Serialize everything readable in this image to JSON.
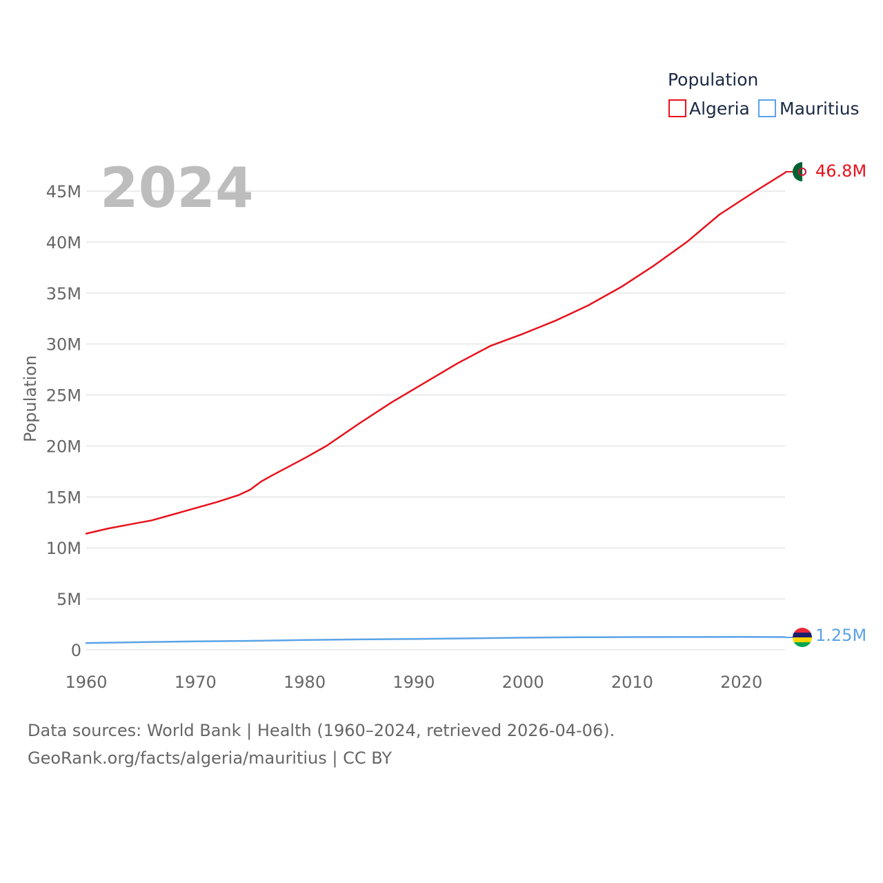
{
  "chart_data": {
    "type": "line",
    "year_label": "2024",
    "legend_title": "Population",
    "ylabel": "Population",
    "xlim": [
      1960,
      2024
    ],
    "ylim": [
      0,
      47000000
    ],
    "x_ticks": [
      1960,
      1970,
      1980,
      1990,
      2000,
      2010,
      2020
    ],
    "x_tick_labels": [
      "1960",
      "1970",
      "1980",
      "1990",
      "2000",
      "2010",
      "2020"
    ],
    "y_ticks": [
      0,
      5000000,
      10000000,
      15000000,
      20000000,
      25000000,
      30000000,
      35000000,
      40000000,
      45000000
    ],
    "y_tick_labels": [
      "0",
      "5M",
      "10M",
      "15M",
      "20M",
      "25M",
      "30M",
      "35M",
      "40M",
      "45M"
    ],
    "series": [
      {
        "name": "Algeria",
        "color": "#e8111b",
        "end_label": "46.8M",
        "flag_colors": [
          "#006233",
          "#ffffff",
          "#d21034"
        ],
        "x": [
          1960,
          1962,
          1964,
          1966,
          1968,
          1970,
          1972,
          1974,
          1975,
          1976,
          1977,
          1980,
          1982,
          1985,
          1988,
          1991,
          1994,
          1997,
          2000,
          2003,
          2006,
          2009,
          2012,
          2015,
          2018,
          2021,
          2024
        ],
        "values": [
          11400000,
          11900000,
          12300000,
          12700000,
          13300000,
          13900000,
          14500000,
          15200000,
          15700000,
          16500000,
          17100000,
          18800000,
          20000000,
          22200000,
          24300000,
          26200000,
          28100000,
          29800000,
          31000000,
          32300000,
          33800000,
          35600000,
          37700000,
          40000000,
          42700000,
          44800000,
          46800000
        ]
      },
      {
        "name": "Mauritius",
        "color": "#5aa3e6",
        "end_label": "1.25M",
        "flag_colors": [
          "#ea2839",
          "#1a206d",
          "#ffd500",
          "#00a551"
        ],
        "x": [
          1960,
          1965,
          1970,
          1975,
          1980,
          1985,
          1990,
          1995,
          2000,
          2005,
          2010,
          2015,
          2020,
          2024
        ],
        "values": [
          660000,
          750000,
          830000,
          880000,
          960000,
          1020000,
          1060000,
          1120000,
          1190000,
          1230000,
          1250000,
          1260000,
          1270000,
          1250000
        ]
      }
    ]
  },
  "footer": {
    "source_line": "Data sources: World Bank | Health (1960–2024, retrieved 2026-04-06).",
    "url_line": "GeoRank.org/facts/algeria/mauritius | CC BY"
  }
}
